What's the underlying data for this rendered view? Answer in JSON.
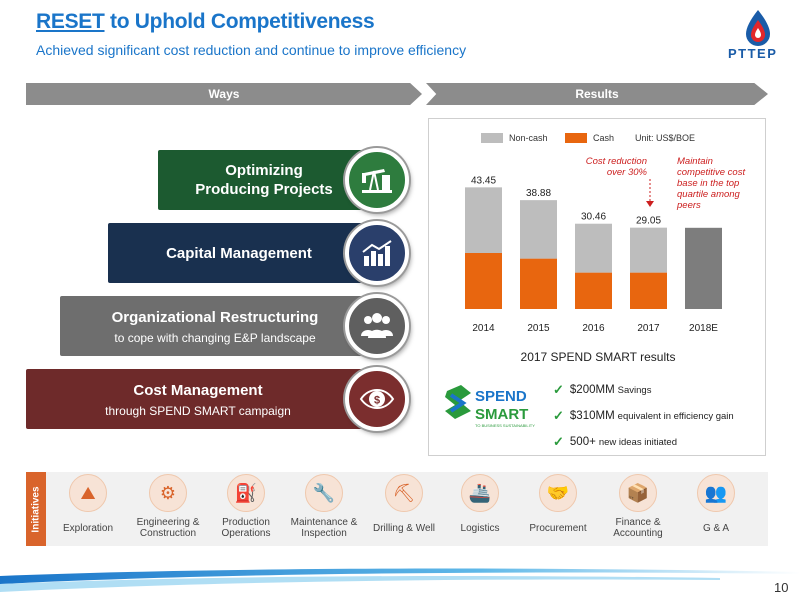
{
  "header": {
    "title_underlined": "RESET",
    "title_rest": " to Uphold Competitiveness",
    "subtitle": "Achieved significant cost reduction and continue to improve efficiency",
    "logo_text": "PTTEP"
  },
  "banners": {
    "ways": "Ways",
    "results": "Results"
  },
  "ways": [
    {
      "main": "Optimizing Producing Projects",
      "sub": "",
      "icon": "oil-pump-icon"
    },
    {
      "main": "Capital Management",
      "sub": "",
      "icon": "bar-chart-icon"
    },
    {
      "main": "Organizational Restructuring",
      "sub": "to cope with changing E&P landscape",
      "icon": "people-icon"
    },
    {
      "main": "Cost Management",
      "sub": "through SPEND SMART campaign",
      "icon": "dollar-eye-icon"
    }
  ],
  "chart_data": {
    "type": "bar",
    "stacked": true,
    "categories": [
      "2014",
      "2015",
      "2016",
      "2017",
      "2018E"
    ],
    "series": [
      {
        "name": "Non-cash",
        "color": "#bdbdbd",
        "values": [
          23.45,
          20.88,
          17.46,
          16.05,
          null
        ]
      },
      {
        "name": "Cash",
        "color": "#e8660f",
        "values": [
          20.0,
          18.0,
          13.0,
          13.0,
          null
        ]
      }
    ],
    "totals": [
      43.45,
      38.88,
      30.46,
      29.05,
      null
    ],
    "total_labels": [
      "43.45",
      "38.88",
      "30.46",
      "29.05",
      ""
    ],
    "forecast_value": 29.0,
    "forecast_color": "#7d7d7d",
    "unit": "Unit: US$/BOE",
    "ylim": [
      0,
      50
    ],
    "annotations": [
      "Cost reduction over 30%",
      "Maintain competitive cost base in the top quartile among peers"
    ]
  },
  "spend": {
    "title": "2017 SPEND SMART results",
    "logo_word1": "SPEND",
    "logo_word2": "SMART",
    "logo_tagline": "TO BUSINESS SUSTAINABILITY",
    "items": [
      {
        "big": "$200MM",
        "small": "Savings"
      },
      {
        "big": "$310MM",
        "small": "equivalent in efficiency gain"
      },
      {
        "big": "500+",
        "small": "new ideas initiated"
      }
    ]
  },
  "initiatives": {
    "label": "Initiatives",
    "items": [
      {
        "label": "Exploration",
        "icon": "exploration-icon"
      },
      {
        "label": "Engineering & Construction",
        "icon": "engineering-icon"
      },
      {
        "label": "Production Operations",
        "icon": "production-icon"
      },
      {
        "label": "Maintenance & Inspection",
        "icon": "maintenance-icon"
      },
      {
        "label": "Drilling & Well",
        "icon": "drilling-icon"
      },
      {
        "label": "Logistics",
        "icon": "ship-icon"
      },
      {
        "label": "Procurement",
        "icon": "handshake-icon"
      },
      {
        "label": "Finance & Accounting",
        "icon": "finance-icon"
      },
      {
        "label": "G & A",
        "icon": "admin-icon"
      }
    ]
  },
  "page_number": "10"
}
